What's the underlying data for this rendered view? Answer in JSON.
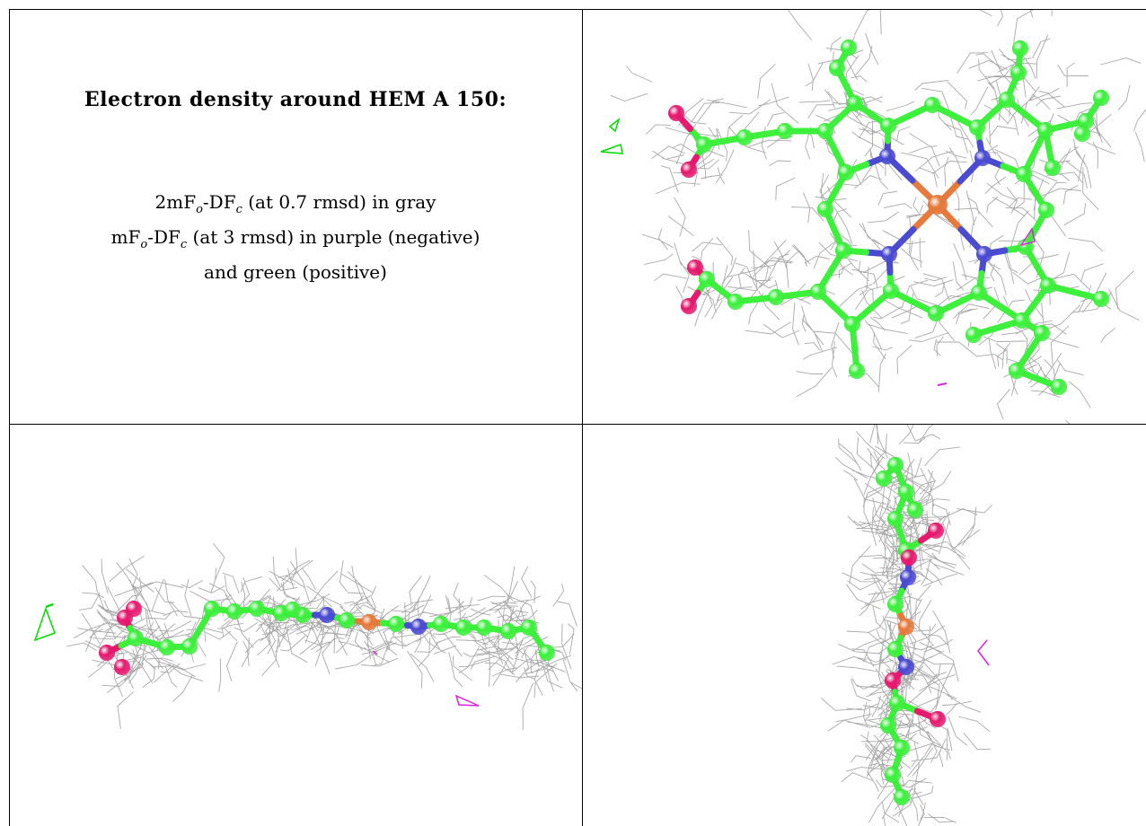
{
  "caption": {
    "title": "Electron density around HEM A 150:",
    "line1": {
      "pre": "2mF",
      "sub1": "o",
      "mid": "-DF",
      "sub2": "c",
      "post": " (at 0.7 rmsd) in gray"
    },
    "line2": {
      "pre": "mF",
      "sub1": "o",
      "mid": "-DF",
      "sub2": "c",
      "post": " (at 3 rmsd) in purple (negative)"
    },
    "line3": "and green (positive)"
  },
  "colors": {
    "carbon": "#3cf03c",
    "nitrogen": "#4b4bd2",
    "iron": "#e67a3c",
    "oxygen": "#e6196e",
    "mesh": "#a8a8a8",
    "positive_density": "#00dd00",
    "negative_density": "#dd22dd"
  },
  "panels": [
    {
      "id": "top-right",
      "view": "face-on"
    },
    {
      "id": "bottom-left",
      "view": "edge-on side"
    },
    {
      "id": "bottom-right",
      "view": "edge-on end"
    }
  ]
}
